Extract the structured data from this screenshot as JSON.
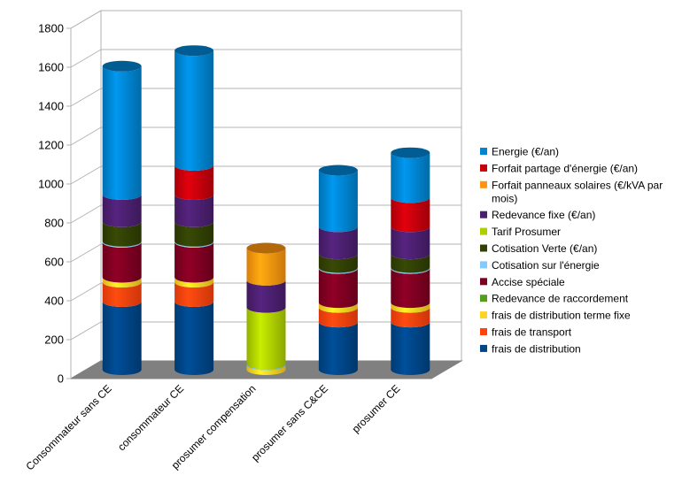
{
  "chart_data": {
    "type": "bar",
    "stacked": true,
    "style_3d": true,
    "grid": true,
    "legend_position": "right",
    "ylim": [
      0,
      1800
    ],
    "yticks": [
      0,
      200,
      400,
      600,
      800,
      1000,
      1200,
      1400,
      1600,
      1800
    ],
    "categories": [
      "Consommateur sans CE",
      "consommateur CE",
      "prosumer compensation",
      "prosumer sans C&CE",
      "prosumer CE"
    ],
    "series": [
      {
        "name": "frais de distribution",
        "color": "#004586",
        "values": [
          350,
          350,
          0,
          245,
          245
        ]
      },
      {
        "name": "frais de transport",
        "color": "#ff420e",
        "values": [
          100,
          100,
          0,
          75,
          75
        ]
      },
      {
        "name": "frais de distribution terme fixe",
        "color": "#ffd320",
        "values": [
          25,
          25,
          25,
          25,
          25
        ]
      },
      {
        "name": "Redevance de raccordement",
        "color": "#579d1c",
        "values": [
          0,
          0,
          0,
          0,
          0
        ]
      },
      {
        "name": "Accise spéciale",
        "color": "#7e0021",
        "values": [
          180,
          180,
          0,
          175,
          175
        ]
      },
      {
        "name": "Cotisation sur l'énergie",
        "color": "#83caff",
        "values": [
          5,
          5,
          5,
          5,
          5
        ]
      },
      {
        "name": "Cotisation Verte (€/an)",
        "color": "#314004",
        "values": [
          100,
          100,
          0,
          70,
          70
        ]
      },
      {
        "name": "Tarif Prosumer",
        "color": "#aecf00",
        "values": [
          0,
          0,
          290,
          0,
          0
        ]
      },
      {
        "name": "Redevance fixe (€/an)",
        "color": "#4b1f6f",
        "values": [
          140,
          140,
          140,
          140,
          140
        ]
      },
      {
        "name": "Forfait panneaux solaires (€/kVA par mois)",
        "color": "#ff950e",
        "values": [
          0,
          0,
          165,
          0,
          0
        ]
      },
      {
        "name": "Forfait partage d'énergie (€/an)",
        "color": "#c5000b",
        "values": [
          0,
          150,
          0,
          0,
          150
        ]
      },
      {
        "name": "Energie (€/an)",
        "color": "#0084d1",
        "values": [
          660,
          590,
          0,
          290,
          230
        ]
      }
    ],
    "legend_order": [
      "Energie (€/an)",
      "Forfait partage d'énergie (€/an)",
      "Forfait panneaux solaires (€/kVA par mois)",
      "Redevance fixe (€/an)",
      "Tarif Prosumer",
      "Cotisation Verte (€/an)",
      "Cotisation sur l'énergie",
      "Accise spéciale",
      "Redevance de raccordement",
      "frais de distribution terme fixe",
      "frais de transport",
      "frais de distribution"
    ]
  }
}
